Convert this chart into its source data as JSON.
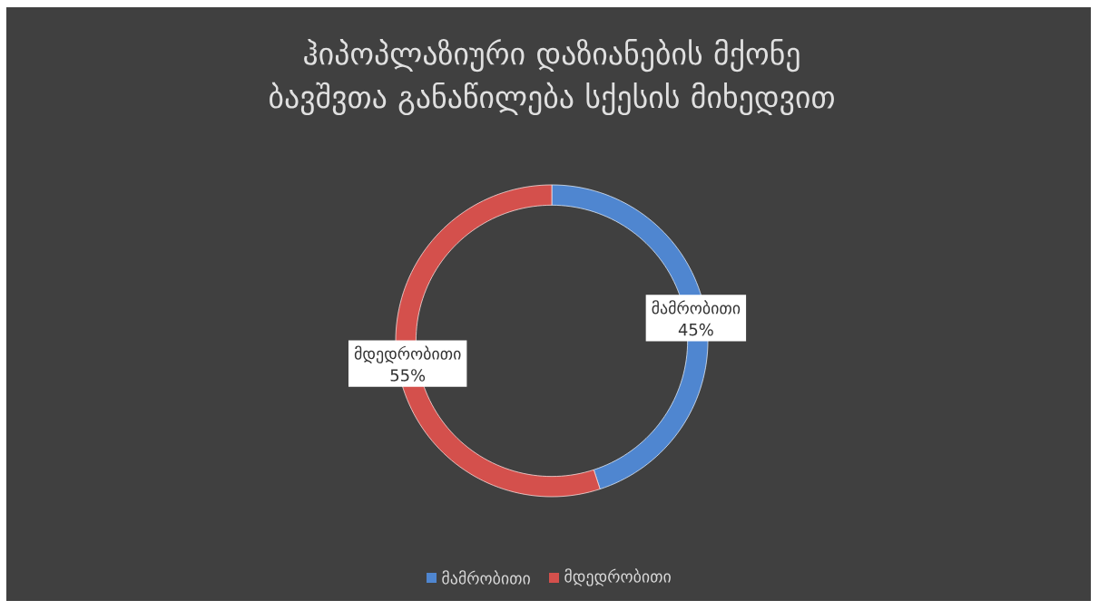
{
  "chart_data": {
    "type": "donut",
    "title": "ჰიპოპლაზიური დაზიანების მქონე ბავშვთა განაწილება სქესის მიხედვით",
    "categories": [
      "მამრობითი",
      "მდედრობითი"
    ],
    "values": [
      45,
      55
    ],
    "value_labels": [
      "45%",
      "55%"
    ],
    "colors": [
      "#4f86d0",
      "#d4504c"
    ],
    "data_labels": true,
    "legend": "bottom"
  }
}
